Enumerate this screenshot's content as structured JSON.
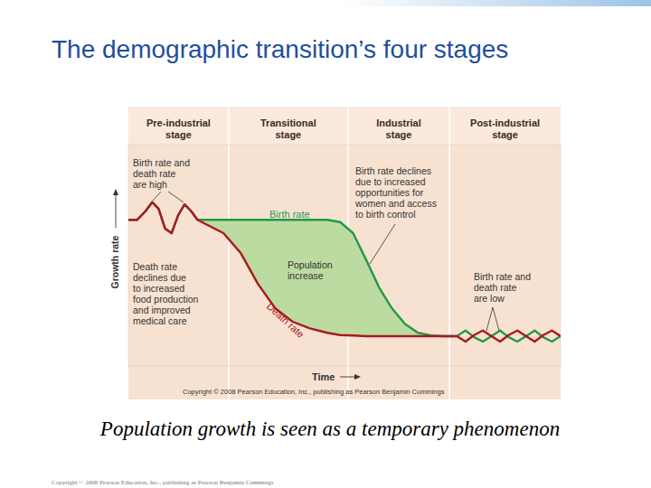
{
  "chart_data": {
    "type": "line",
    "title": "The demographic transition’s four stages",
    "x_label": "Time",
    "y_label": "Growth rate",
    "xlim": [
      0,
      100
    ],
    "ylim": [
      0,
      100
    ],
    "tick_labels": false,
    "grid": false,
    "stages": [
      "Pre-industrial stage",
      "Transitional stage",
      "Industrial stage",
      "Post-industrial stage"
    ],
    "stage_bounds": [
      0,
      23.2,
      50.8,
      74.3,
      100
    ],
    "x": [
      0,
      2,
      4,
      5.5,
      7,
      8.5,
      10,
      11.5,
      13,
      14.5,
      16,
      18,
      22,
      26,
      30,
      34,
      38,
      42,
      46,
      49,
      52,
      55,
      58,
      61,
      64,
      67,
      70,
      73,
      76,
      78,
      80,
      82,
      84,
      86,
      88,
      90,
      92,
      94,
      96,
      98,
      100
    ],
    "series": [
      {
        "name": "Birth rate",
        "color": "#1e9a4b",
        "values": [
          66,
          66,
          70,
          74,
          71,
          62,
          60,
          68,
          73,
          70,
          66,
          66,
          66,
          66,
          66,
          66,
          66,
          66,
          66,
          65,
          60,
          48,
          35.5,
          26,
          19,
          15,
          13.8,
          13.5,
          13.5,
          16,
          13,
          11,
          13.5,
          16,
          13,
          11,
          13.5,
          16,
          13,
          11,
          13.5
        ]
      },
      {
        "name": "Death rate",
        "color": "#a8181f",
        "values": [
          66,
          66,
          70,
          74,
          71,
          62,
          60,
          68,
          73,
          70,
          66,
          64,
          60,
          51,
          37,
          26,
          20,
          17,
          15,
          14,
          13.8,
          13.5,
          13.5,
          13.5,
          13.5,
          13.5,
          13.5,
          13.5,
          13.5,
          11,
          14,
          16,
          13.5,
          11,
          14,
          16,
          13.5,
          11,
          14,
          16,
          13.5
        ]
      }
    ],
    "annotations": [
      [
        "Birth rate and",
        "death rate",
        "are high"
      ],
      [
        "Death rate",
        "declines due",
        "to increased",
        "food production",
        "and improved",
        "medical care"
      ],
      [
        "Population",
        "increase"
      ],
      [
        "Birth rate declines",
        "due to increased",
        "opportunities for",
        "women and access",
        "to birth control"
      ],
      [
        "Birth rate and",
        "death rate",
        "are low"
      ]
    ],
    "copyright": "Copyright © 2008 Pearson Education, Inc., publishing as Pearson Benjamin Cummings"
  },
  "slide": {
    "caption": "Population growth is seen as a temporary phenomenon",
    "footer": "Copyright © 2008 Pearson Education, Inc., publishing as Pearson Benjamin Cummings"
  }
}
